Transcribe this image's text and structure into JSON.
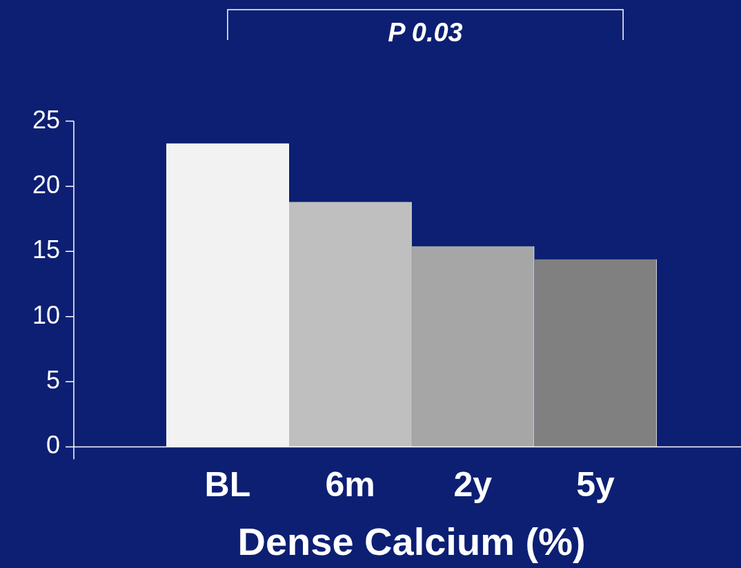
{
  "chart_data": {
    "type": "bar",
    "xlabel": "Dense Calcium (%)",
    "categories": [
      "BL",
      "6m",
      "2y",
      "5y"
    ],
    "values": [
      23.3,
      18.8,
      15.4,
      14.4
    ],
    "colors": [
      "#f2f2f2",
      "#bfbfbf",
      "#a6a6a6",
      "#808080"
    ],
    "ylim": [
      0,
      25
    ],
    "yticks": [
      0,
      5,
      10,
      15,
      20,
      25
    ],
    "grid": false,
    "legend": false,
    "annotations": [
      "P 0.03"
    ]
  }
}
